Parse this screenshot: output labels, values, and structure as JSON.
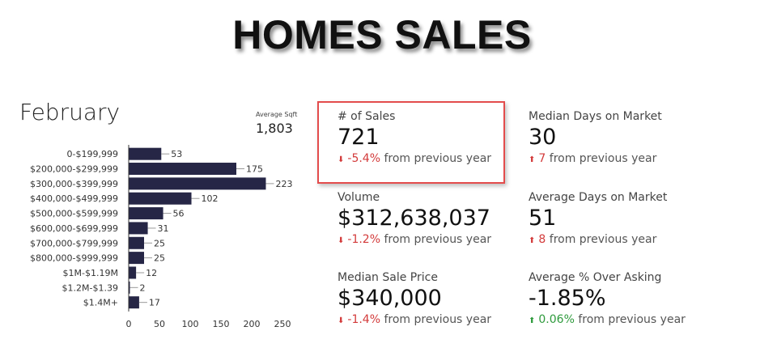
{
  "title": "HOMES SALES",
  "month": "February",
  "avg_sqft": {
    "label": "Average Sqft",
    "value": "1,803"
  },
  "chart_data": {
    "type": "bar",
    "orientation": "horizontal",
    "categories": [
      "0-$199,999",
      "$200,000-$299,999",
      "$300,000-$399,999",
      "$400,000-$499,999",
      "$500,000-$599,999",
      "$600,000-$699,999",
      "$700,000-$799,999",
      "$800,000-$999,999",
      "$1M-$1.19M",
      "$1.2M-$1.39",
      "$1.4M+"
    ],
    "values": [
      53,
      175,
      223,
      102,
      56,
      31,
      25,
      25,
      12,
      2,
      17
    ],
    "xlim": [
      0,
      250
    ],
    "xticks": [
      0,
      50,
      100,
      150,
      200,
      250
    ],
    "bar_color": "#262646",
    "grid": false
  },
  "metrics": [
    {
      "label": "# of Sales",
      "value": "721",
      "direction": "down",
      "change": "-5.4%",
      "suffix": "from previous year"
    },
    {
      "label": "Median Days on Market",
      "value": "30",
      "direction": "up",
      "change": "7",
      "suffix": "from previous year"
    },
    {
      "label": "Volume",
      "value": "$312,638,037",
      "direction": "down",
      "change": "-1.2%",
      "suffix": "from previous year"
    },
    {
      "label": "Average Days on Market",
      "value": "51",
      "direction": "up",
      "change": "8",
      "suffix": "from previous year"
    },
    {
      "label": "Median Sale Price",
      "value": "$340,000",
      "direction": "down",
      "change": "-1.4%",
      "suffix": "from previous year"
    },
    {
      "label": "Average % Over Asking",
      "value": "-1.85%",
      "direction": "up-good",
      "change": "0.06%",
      "suffix": "from previous year"
    }
  ],
  "colors": {
    "negative": "#d33b3b",
    "positive": "#2e9a3c",
    "highlight": "#e34c4c"
  }
}
